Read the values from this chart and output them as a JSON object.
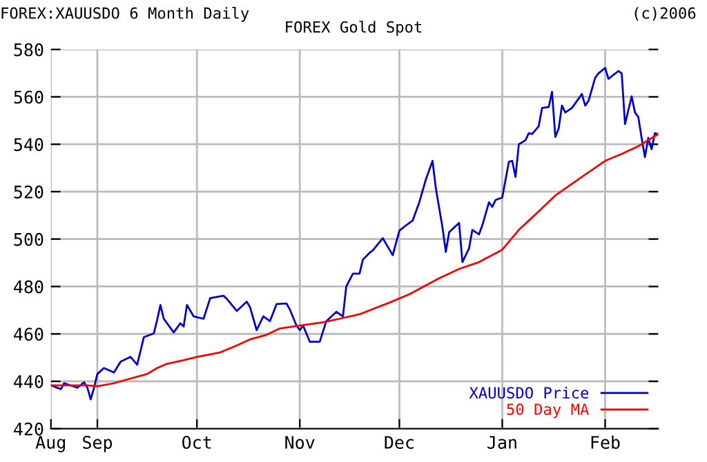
{
  "chart_data": {
    "type": "line",
    "title": "FOREX:XAUUSDO 6 Month Daily",
    "subtitle": "FOREX Gold Spot",
    "annotations": [
      "(c)2006"
    ],
    "xlim": [
      "2005-08-18",
      "2006-02-17"
    ],
    "xticks": [
      {
        "value": "2005-08-18",
        "label": "Aug"
      },
      {
        "value": "2005-09-01",
        "label": "Sep"
      },
      {
        "value": "2005-10-01",
        "label": "Oct"
      },
      {
        "value": "2005-11-01",
        "label": "Nov"
      },
      {
        "value": "2005-12-01",
        "label": "Dec"
      },
      {
        "value": "2006-01-01",
        "label": "Jan"
      },
      {
        "value": "2006-02-01",
        "label": "Feb"
      }
    ],
    "ylim": [
      420,
      580
    ],
    "yticks": [
      420,
      440,
      460,
      480,
      500,
      520,
      540,
      560,
      580
    ],
    "grid": true,
    "legend": "bottom right",
    "series": [
      {
        "name": "XAUUSDO Price",
        "color": "#0000cc",
        "x": [
          "2005-08-18",
          "2005-08-21",
          "2005-08-22",
          "2005-08-26",
          "2005-08-28",
          "2005-08-29",
          "2005-08-30",
          "2005-08-31",
          "2005-09-01",
          "2005-09-03",
          "2005-09-06",
          "2005-09-08",
          "2005-09-11",
          "2005-09-13",
          "2005-09-15",
          "2005-09-18",
          "2005-09-19",
          "2005-09-20",
          "2005-09-21",
          "2005-09-24",
          "2005-09-26",
          "2005-09-27",
          "2005-09-28",
          "2005-09-30",
          "2005-10-03",
          "2005-10-05",
          "2005-10-09",
          "2005-10-10",
          "2005-10-13",
          "2005-10-16",
          "2005-10-17",
          "2005-10-19",
          "2005-10-21",
          "2005-10-23",
          "2005-10-25",
          "2005-10-28",
          "2005-10-29",
          "2005-10-31",
          "2005-11-01",
          "2005-11-02",
          "2005-11-04",
          "2005-11-07",
          "2005-11-09",
          "2005-11-12",
          "2005-11-14",
          "2005-11-15",
          "2005-11-17",
          "2005-11-19",
          "2005-11-20",
          "2005-11-22",
          "2005-11-23",
          "2005-11-26",
          "2005-11-29",
          "2005-12-01",
          "2005-12-03",
          "2005-12-05",
          "2005-12-07",
          "2005-12-09",
          "2005-12-11",
          "2005-12-12",
          "2005-12-14",
          "2005-12-15",
          "2005-12-16",
          "2005-12-19",
          "2005-12-20",
          "2005-12-22",
          "2005-12-23",
          "2005-12-25",
          "2005-12-26",
          "2005-12-28",
          "2005-12-29",
          "2005-12-30",
          "2006-01-01",
          "2006-01-03",
          "2006-01-04",
          "2006-01-05",
          "2006-01-06",
          "2006-01-08",
          "2006-01-09",
          "2006-01-10",
          "2006-01-12",
          "2006-01-13",
          "2006-01-15",
          "2006-01-16",
          "2006-01-17",
          "2006-01-18",
          "2006-01-19",
          "2006-01-20",
          "2006-01-22",
          "2006-01-25",
          "2006-01-26",
          "2006-01-27",
          "2006-01-29",
          "2006-01-30",
          "2006-02-01",
          "2006-02-02",
          "2006-02-05",
          "2006-02-06",
          "2006-02-07",
          "2006-02-08",
          "2006-02-09",
          "2006-02-10",
          "2006-02-11",
          "2006-02-12",
          "2006-02-13",
          "2006-02-14",
          "2006-02-15",
          "2006-02-16",
          "2006-02-17"
        ],
        "values": [
          438.3,
          436.7,
          439.2,
          437.3,
          439.6,
          437.3,
          432.4,
          437.3,
          443.1,
          445.6,
          443.7,
          448.3,
          450.3,
          447.0,
          458.6,
          460.2,
          465.8,
          472.2,
          466.4,
          460.6,
          464.5,
          463.1,
          472.2,
          467.4,
          466.4,
          475.1,
          476.1,
          474.8,
          469.7,
          473.6,
          471.3,
          461.6,
          467.4,
          465.4,
          472.6,
          472.8,
          470.3,
          463.5,
          461.6,
          463.5,
          456.7,
          456.7,
          465.4,
          469.3,
          467.4,
          480.0,
          485.4,
          485.4,
          491.3,
          494.2,
          495.2,
          500.4,
          493.2,
          503.5,
          505.8,
          507.8,
          515.5,
          525.2,
          533.0,
          521.4,
          504.9,
          494.6,
          502.9,
          506.8,
          490.3,
          496.1,
          503.9,
          502.0,
          505.8,
          515.5,
          513.6,
          516.5,
          517.5,
          532.6,
          533.0,
          526.2,
          540.0,
          541.7,
          544.7,
          544.3,
          547.6,
          555.3,
          555.7,
          562.1,
          543.1,
          546.6,
          556.3,
          553.4,
          555.3,
          561.2,
          556.3,
          558.3,
          568.0,
          569.9,
          572.2,
          567.6,
          570.9,
          569.9,
          548.5,
          554.4,
          560.2,
          553.4,
          551.5,
          542.7,
          534.6,
          542.7,
          537.9,
          544.7,
          544.3
        ]
      },
      {
        "name": "50 Day MA",
        "color": "#ff0000",
        "x": [
          "2005-08-18",
          "2005-08-29",
          "2005-09-01",
          "2005-09-06",
          "2005-09-10",
          "2005-09-16",
          "2005-09-19",
          "2005-09-22",
          "2005-09-27",
          "2005-10-01",
          "2005-10-08",
          "2005-10-13",
          "2005-10-17",
          "2005-10-22",
          "2005-10-26",
          "2005-11-01",
          "2005-11-08",
          "2005-11-13",
          "2005-11-19",
          "2005-11-28",
          "2005-12-04",
          "2005-12-13",
          "2005-12-19",
          "2005-12-25",
          "2006-01-01",
          "2006-01-06",
          "2006-01-12",
          "2006-01-17",
          "2006-01-22",
          "2006-01-27",
          "2006-02-01",
          "2006-02-06",
          "2006-02-11",
          "2006-02-17"
        ],
        "values": [
          438.3,
          438.3,
          437.9,
          439.2,
          440.8,
          443.1,
          445.6,
          447.4,
          448.9,
          450.3,
          452.2,
          455.1,
          457.7,
          459.6,
          462.3,
          463.5,
          464.9,
          466.4,
          468.3,
          473.2,
          476.7,
          483.5,
          487.4,
          490.3,
          495.5,
          503.9,
          511.7,
          518.4,
          523.3,
          528.2,
          533.0,
          535.9,
          539.2,
          544.3
        ]
      }
    ]
  }
}
